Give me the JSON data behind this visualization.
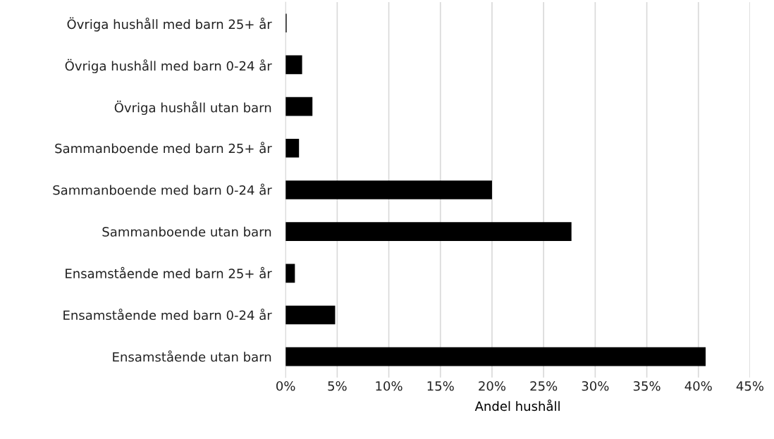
{
  "chart_data": {
    "type": "bar",
    "orientation": "horizontal",
    "xlabel": "Andel hushåll",
    "categories": [
      "Övriga hushåll med barn 25+ år",
      "Övriga hushåll med barn 0-24 år",
      "Övriga hushåll utan barn",
      "Sammanboende med barn 25+ år",
      "Sammanboende med barn 0-24 år",
      "Sammanboende utan barn",
      "Ensamstående med barn 25+ år",
      "Ensamstående med barn 0-24 år",
      "Ensamstående utan barn"
    ],
    "values": [
      0.1,
      1.6,
      2.6,
      1.3,
      20.0,
      27.7,
      0.9,
      4.8,
      40.7
    ],
    "color": "#000000",
    "xlim": [
      0,
      45
    ],
    "xticks": [
      {
        "value": 0,
        "label": "0%"
      },
      {
        "value": 5,
        "label": "5%"
      },
      {
        "value": 10,
        "label": "10%"
      },
      {
        "value": 15,
        "label": "15%"
      },
      {
        "value": 20,
        "label": "20%"
      },
      {
        "value": 25,
        "label": "25%"
      },
      {
        "value": 30,
        "label": "30%"
      },
      {
        "value": 35,
        "label": "35%"
      },
      {
        "value": 40,
        "label": "40%"
      },
      {
        "value": 45,
        "label": "45%"
      }
    ],
    "grid": "x",
    "legend": false
  }
}
